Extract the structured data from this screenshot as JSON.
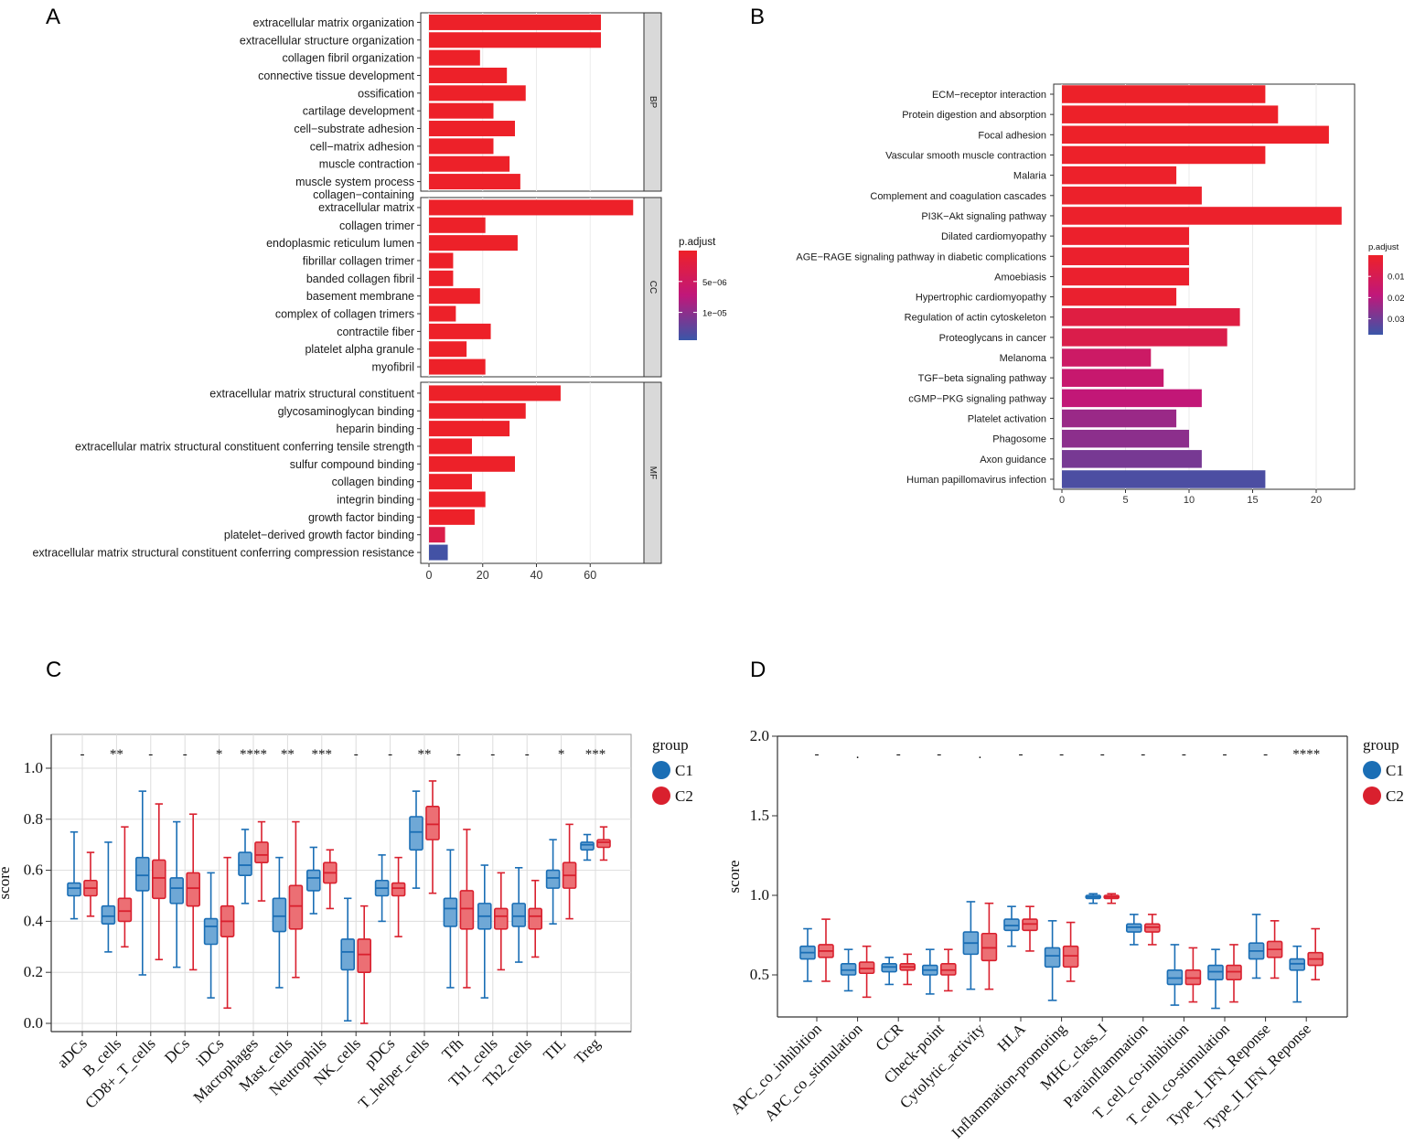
{
  "panel_labels": {
    "a": "A",
    "b": "B",
    "c": "C",
    "d": "D"
  },
  "chart_data": [
    {
      "id": "A",
      "type": "bar",
      "orientation": "horizontal",
      "title": "",
      "xlabel": "",
      "ylabel": "",
      "xlim": [
        0,
        80
      ],
      "xticks": [
        "0",
        "20",
        "40",
        "60"
      ],
      "facets": [
        {
          "name": "BP",
          "items": [
            {
              "label": "extracellular matrix organization",
              "value": 64,
              "padj": 1e-07
            },
            {
              "label": "extracellular structure organization",
              "value": 64,
              "padj": 1e-07
            },
            {
              "label": "collagen fibril organization",
              "value": 19,
              "padj": 1e-07
            },
            {
              "label": "connective tissue development",
              "value": 29,
              "padj": 1e-07
            },
            {
              "label": "ossification",
              "value": 36,
              "padj": 1e-07
            },
            {
              "label": "cartilage development",
              "value": 24,
              "padj": 1e-07
            },
            {
              "label": "cell−substrate adhesion",
              "value": 32,
              "padj": 1e-07
            },
            {
              "label": "cell−matrix adhesion",
              "value": 24,
              "padj": 1e-07
            },
            {
              "label": "muscle contraction",
              "value": 30,
              "padj": 1e-07
            },
            {
              "label": "muscle system process",
              "value": 34,
              "padj": 1e-07
            }
          ]
        },
        {
          "name": "CC",
          "items": [
            {
              "label": "collagen−containing extracellular matrix",
              "label_lines": [
                "collagen−containing",
                "extracellular matrix"
              ],
              "value": 76,
              "padj": 1e-07
            },
            {
              "label": "collagen trimer",
              "value": 21,
              "padj": 1e-07
            },
            {
              "label": "endoplasmic reticulum lumen",
              "value": 33,
              "padj": 1e-07
            },
            {
              "label": "fibrillar collagen trimer",
              "value": 9,
              "padj": 1e-07
            },
            {
              "label": "banded collagen fibril",
              "value": 9,
              "padj": 1e-07
            },
            {
              "label": "basement membrane",
              "value": 19,
              "padj": 1e-07
            },
            {
              "label": "complex of collagen trimers",
              "value": 10,
              "padj": 1e-07
            },
            {
              "label": "contractile fiber",
              "value": 23,
              "padj": 1e-07
            },
            {
              "label": "platelet alpha granule",
              "value": 14,
              "padj": 1e-07
            },
            {
              "label": "myofibril",
              "value": 21,
              "padj": 1e-07
            }
          ]
        },
        {
          "name": "MF",
          "items": [
            {
              "label": "extracellular matrix structural constituent",
              "value": 49,
              "padj": 1e-07
            },
            {
              "label": "glycosaminoglycan binding",
              "value": 36,
              "padj": 1e-07
            },
            {
              "label": "heparin binding",
              "value": 30,
              "padj": 1e-07
            },
            {
              "label": "extracellular matrix structural constituent conferring tensile strength",
              "value": 16,
              "padj": 1e-07
            },
            {
              "label": "sulfur compound binding",
              "value": 32,
              "padj": 1e-07
            },
            {
              "label": "collagen binding",
              "value": 16,
              "padj": 1e-07
            },
            {
              "label": "integrin binding",
              "value": 21,
              "padj": 1e-07
            },
            {
              "label": "growth factor binding",
              "value": 17,
              "padj": 1e-07
            },
            {
              "label": "platelet−derived growth factor binding",
              "value": 6,
              "padj": 3e-06
            },
            {
              "label": "extracellular matrix structural constituent conferring compression resistance",
              "value": 7,
              "padj": 1.4e-05
            }
          ]
        }
      ],
      "legend": {
        "title": "p.adjust",
        "ticks": [
          "5e−06",
          "1e−05"
        ],
        "tick_values": [
          5e-06,
          1e-05
        ],
        "range": [
          0,
          1.45e-05
        ],
        "colors": [
          "#ee2128",
          "#c0177a",
          "#3a56a8"
        ],
        "placement": "right"
      }
    },
    {
      "id": "B",
      "type": "bar",
      "orientation": "horizontal",
      "title": "",
      "xlabel": "",
      "ylabel": "",
      "xlim": [
        0,
        23
      ],
      "xticks": [
        "0",
        "5",
        "10",
        "15",
        "20"
      ],
      "items": [
        {
          "label": "ECM−receptor interaction",
          "value": 16,
          "padj": 0.0003
        },
        {
          "label": "Protein digestion and absorption",
          "value": 17,
          "padj": 0.0003
        },
        {
          "label": "Focal adhesion",
          "value": 21,
          "padj": 0.0003
        },
        {
          "label": "Vascular smooth muscle contraction",
          "value": 16,
          "padj": 0.0005
        },
        {
          "label": "Malaria",
          "value": 9,
          "padj": 0.0006
        },
        {
          "label": "Complement and coagulation cascades",
          "value": 11,
          "padj": 0.0008
        },
        {
          "label": "PI3K−Akt signaling pathway",
          "value": 22,
          "padj": 0.0009
        },
        {
          "label": "Dilated cardiomyopathy",
          "value": 10,
          "padj": 0.001
        },
        {
          "label": "AGE−RAGE signaling pathway in diabetic complications",
          "value": 10,
          "padj": 0.0012
        },
        {
          "label": "Amoebiasis",
          "value": 10,
          "padj": 0.0014
        },
        {
          "label": "Hypertrophic cardiomyopathy",
          "value": 9,
          "padj": 0.0016
        },
        {
          "label": "Regulation of actin cytoskeleton",
          "value": 14,
          "padj": 0.006
        },
        {
          "label": "Proteoglycans in cancer",
          "value": 13,
          "padj": 0.008
        },
        {
          "label": "Melanoma",
          "value": 7,
          "padj": 0.014
        },
        {
          "label": "TGF−beta signaling pathway",
          "value": 8,
          "padj": 0.016
        },
        {
          "label": "cGMP−PKG signaling pathway",
          "value": 11,
          "padj": 0.018
        },
        {
          "label": "Platelet activation",
          "value": 9,
          "padj": 0.024
        },
        {
          "label": "Phagosome",
          "value": 10,
          "padj": 0.026
        },
        {
          "label": "Axon guidance",
          "value": 11,
          "padj": 0.029
        },
        {
          "label": "Human papillomavirus infection",
          "value": 16,
          "padj": 0.035
        }
      ],
      "legend": {
        "title": "p.adjust",
        "ticks": [
          "0.01",
          "0.02",
          "0.03"
        ],
        "tick_values": [
          0.01,
          0.02,
          0.03
        ],
        "range": [
          0,
          0.0375
        ],
        "colors": [
          "#ee2128",
          "#c0177a",
          "#3a56a8"
        ],
        "placement": "right"
      }
    },
    {
      "id": "C",
      "type": "box",
      "title": "",
      "xlabel": "",
      "ylabel": "score",
      "ylim": [
        -0.03,
        1.1
      ],
      "yticks": [
        "0.0",
        "0.2",
        "0.4",
        "0.6",
        "0.8",
        "1.0"
      ],
      "categories": [
        "aDCs",
        "B_cells",
        "CD8+_T_cells",
        "DCs",
        "iDCs",
        "Macrophages",
        "Mast_cells",
        "Neutrophils",
        "NK_cells",
        "pDCs",
        "T_helper_cells",
        "Tfh",
        "Th1_cells",
        "Th2_cells",
        "TIL",
        "Treg"
      ],
      "significance": [
        "-",
        "**",
        "-",
        "-",
        "*",
        "****",
        "**",
        "***",
        "-",
        "-",
        "**",
        "-",
        "-",
        "-",
        "*",
        "***"
      ],
      "series": [
        {
          "name": "C1",
          "color": "#1a6eb5",
          "fill": "#6fa8d6",
          "boxes": [
            [
              0.41,
              0.5,
              0.53,
              0.55,
              0.75
            ],
            [
              0.28,
              0.39,
              0.42,
              0.46,
              0.71
            ],
            [
              0.19,
              0.52,
              0.58,
              0.65,
              0.91
            ],
            [
              0.22,
              0.47,
              0.53,
              0.57,
              0.79
            ],
            [
              0.1,
              0.31,
              0.38,
              0.41,
              0.59
            ],
            [
              0.47,
              0.58,
              0.62,
              0.67,
              0.76
            ],
            [
              0.14,
              0.36,
              0.42,
              0.49,
              0.65
            ],
            [
              0.43,
              0.52,
              0.57,
              0.6,
              0.69
            ],
            [
              0.01,
              0.21,
              0.28,
              0.33,
              0.49
            ],
            [
              0.4,
              0.5,
              0.53,
              0.56,
              0.66
            ],
            [
              0.53,
              0.68,
              0.75,
              0.81,
              0.91
            ],
            [
              0.14,
              0.38,
              0.45,
              0.49,
              0.68
            ],
            [
              0.1,
              0.37,
              0.42,
              0.47,
              0.62
            ],
            [
              0.24,
              0.38,
              0.42,
              0.47,
              0.61
            ],
            [
              0.39,
              0.53,
              0.57,
              0.6,
              0.72
            ],
            [
              0.64,
              0.68,
              0.7,
              0.71,
              0.74
            ]
          ]
        },
        {
          "name": "C2",
          "color": "#d9202e",
          "fill": "#ec6f74",
          "boxes": [
            [
              0.42,
              0.5,
              0.53,
              0.56,
              0.67
            ],
            [
              0.3,
              0.4,
              0.44,
              0.49,
              0.77
            ],
            [
              0.25,
              0.49,
              0.57,
              0.64,
              0.86
            ],
            [
              0.21,
              0.46,
              0.53,
              0.59,
              0.82
            ],
            [
              0.06,
              0.34,
              0.4,
              0.46,
              0.65
            ],
            [
              0.48,
              0.63,
              0.66,
              0.71,
              0.79
            ],
            [
              0.18,
              0.37,
              0.46,
              0.54,
              0.79
            ],
            [
              0.45,
              0.55,
              0.59,
              0.63,
              0.68
            ],
            [
              0.0,
              0.2,
              0.27,
              0.33,
              0.46
            ],
            [
              0.34,
              0.5,
              0.53,
              0.55,
              0.65
            ],
            [
              0.51,
              0.72,
              0.78,
              0.85,
              0.95
            ],
            [
              0.14,
              0.37,
              0.45,
              0.52,
              0.76
            ],
            [
              0.21,
              0.37,
              0.42,
              0.45,
              0.59
            ],
            [
              0.26,
              0.37,
              0.42,
              0.45,
              0.56
            ],
            [
              0.41,
              0.53,
              0.58,
              0.63,
              0.78
            ],
            [
              0.64,
              0.69,
              0.71,
              0.72,
              0.77
            ]
          ]
        }
      ],
      "legend": {
        "title": "group",
        "entries": [
          "C1",
          "C2"
        ],
        "placement": "right"
      }
    },
    {
      "id": "D",
      "type": "box",
      "title": "",
      "xlabel": "",
      "ylabel": "score",
      "ylim": [
        0.28,
        2.0
      ],
      "yticks": [
        "0.5",
        "1.0",
        "1.5",
        "2.0"
      ],
      "categories": [
        "APC_co_inhibition",
        "APC_co_stimulation",
        "CCR",
        "Check-point",
        "Cytolytic_activity",
        "HLA",
        "Inflammation-promoting",
        "MHC_class_I",
        "Parainflammation",
        "T_cell_co-inhibition",
        "T_cell_co-stimulation",
        "Type_I_IFN_Reponse",
        "Type_II_IFN_Reponse"
      ],
      "significance": [
        "-",
        ".",
        "-",
        "-",
        ".",
        "-",
        "-",
        "-",
        "-",
        "-",
        "-",
        "-",
        "****"
      ],
      "series": [
        {
          "name": "C1",
          "color": "#1a6eb5",
          "fill": "#6fa8d6",
          "boxes": [
            [
              0.46,
              0.6,
              0.64,
              0.68,
              0.79
            ],
            [
              0.4,
              0.5,
              0.53,
              0.57,
              0.66
            ],
            [
              0.44,
              0.52,
              0.55,
              0.57,
              0.61
            ],
            [
              0.38,
              0.5,
              0.53,
              0.56,
              0.66
            ],
            [
              0.41,
              0.63,
              0.7,
              0.77,
              0.96
            ],
            [
              0.68,
              0.78,
              0.81,
              0.85,
              0.93
            ],
            [
              0.34,
              0.55,
              0.62,
              0.67,
              0.84
            ],
            [
              0.95,
              0.98,
              0.99,
              1.0,
              1.01
            ],
            [
              0.69,
              0.77,
              0.8,
              0.82,
              0.88
            ],
            [
              0.31,
              0.44,
              0.48,
              0.53,
              0.69
            ],
            [
              0.29,
              0.47,
              0.52,
              0.56,
              0.66
            ],
            [
              0.48,
              0.6,
              0.65,
              0.7,
              0.88
            ],
            [
              0.33,
              0.53,
              0.57,
              0.6,
              0.68
            ]
          ]
        },
        {
          "name": "C2",
          "color": "#d9202e",
          "fill": "#ec6f74",
          "boxes": [
            [
              0.46,
              0.61,
              0.65,
              0.69,
              0.85
            ],
            [
              0.36,
              0.51,
              0.54,
              0.58,
              0.68
            ],
            [
              0.44,
              0.53,
              0.55,
              0.57,
              0.63
            ],
            [
              0.4,
              0.5,
              0.53,
              0.57,
              0.66
            ],
            [
              0.41,
              0.59,
              0.67,
              0.76,
              0.95
            ],
            [
              0.65,
              0.78,
              0.82,
              0.85,
              0.93
            ],
            [
              0.46,
              0.55,
              0.62,
              0.68,
              0.83
            ],
            [
              0.95,
              0.98,
              0.99,
              1.0,
              1.01
            ],
            [
              0.69,
              0.77,
              0.8,
              0.82,
              0.88
            ],
            [
              0.33,
              0.44,
              0.48,
              0.53,
              0.67
            ],
            [
              0.33,
              0.47,
              0.52,
              0.56,
              0.69
            ],
            [
              0.48,
              0.61,
              0.66,
              0.71,
              0.84
            ],
            [
              0.47,
              0.56,
              0.6,
              0.64,
              0.79
            ]
          ]
        }
      ],
      "legend": {
        "title": "group",
        "entries": [
          "C1",
          "C2"
        ],
        "placement": "right"
      }
    }
  ]
}
